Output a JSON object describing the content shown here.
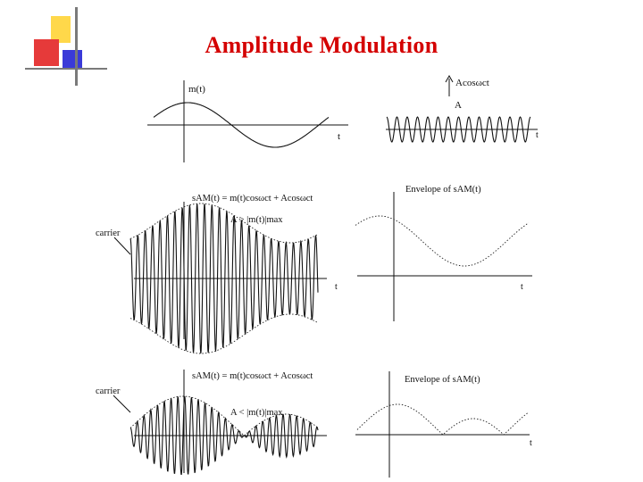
{
  "slide": {
    "title": "Amplitude Modulation",
    "accent_colors": {
      "title": "#d40000",
      "yellow": "#ffd84a",
      "red": "#e63a3a",
      "blue": "#3a3ad8"
    }
  },
  "panels": {
    "message": {
      "m_label": "m(t)",
      "t_label": "t"
    },
    "carrier": {
      "formula": "Acosωct",
      "amp_label": "A",
      "t_label": "t"
    },
    "am_large": {
      "formula": "sAM(t) = m(t)cosωct + Acosωct",
      "condition": "A > |m(t)|max",
      "carrier_label": "carrier",
      "t_label": "t"
    },
    "env_large": {
      "title": "Envelope of sAM(t)",
      "t_label": "t"
    },
    "am_small": {
      "formula": "sAM(t) = m(t)cosωct + Acosωct",
      "condition": "A < |m(t)|max",
      "carrier_label": "carrier"
    },
    "env_small": {
      "title": "Envelope of sAM(t)",
      "t_label": "t"
    }
  }
}
